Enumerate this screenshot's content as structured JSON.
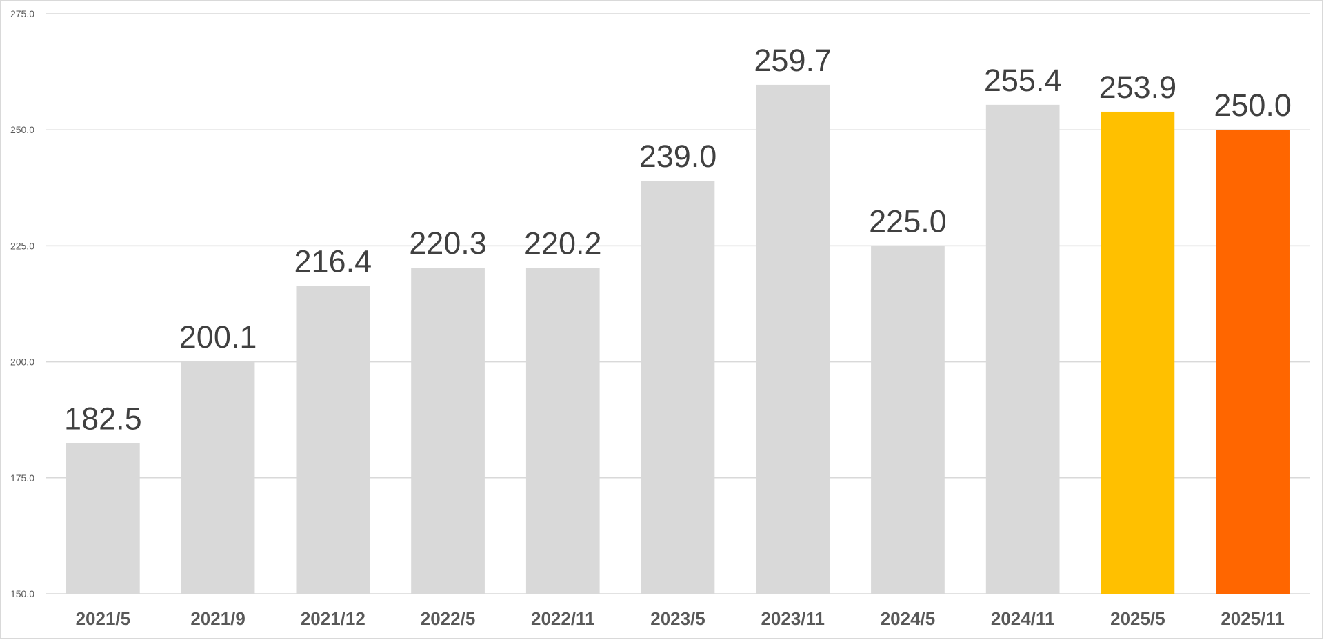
{
  "chart_data": {
    "type": "bar",
    "title": "",
    "xlabel": "",
    "ylabel": "",
    "ylim": [
      150,
      275
    ],
    "yticks": [
      "150.0",
      "175.0",
      "200.0",
      "225.0",
      "250.0",
      "275.0"
    ],
    "grid": true,
    "categories": [
      "2021/5",
      "2021/9",
      "2021/12",
      "2022/5",
      "2022/11",
      "2023/5",
      "2023/11",
      "2024/5",
      "2024/11",
      "2025/5",
      "2025/11"
    ],
    "values": [
      182.5,
      200.1,
      216.4,
      220.3,
      220.2,
      239.0,
      259.7,
      225.0,
      255.4,
      253.9,
      250.0
    ],
    "data_labels": [
      "182.5",
      "200.1",
      "216.4",
      "220.3",
      "220.2",
      "239.0",
      "259.7",
      "225.0",
      "255.4",
      "253.9",
      "250.0"
    ],
    "colors": [
      "#d9d9d9",
      "#d9d9d9",
      "#d9d9d9",
      "#d9d9d9",
      "#d9d9d9",
      "#d9d9d9",
      "#d9d9d9",
      "#d9d9d9",
      "#d9d9d9",
      "#ffc000",
      "#ff6600"
    ],
    "gridline_color": "#d9d9d9"
  }
}
